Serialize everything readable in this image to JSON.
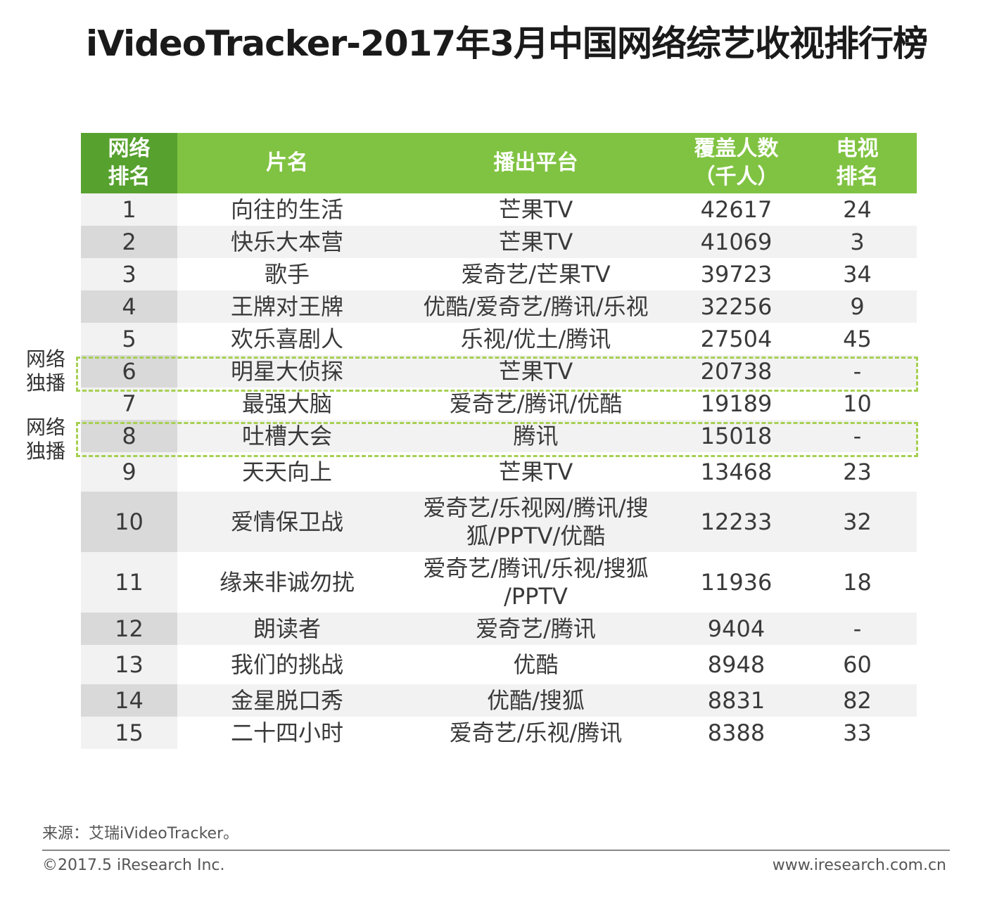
{
  "title": "iVideoTracker-2017年3月中国网络综艺收视排行榜",
  "headers": {
    "rank": [
      "网络",
      "排名"
    ],
    "name": "片名",
    "platform": "播出平台",
    "coverage": [
      "覆盖人数",
      "（千人）"
    ],
    "tv_rank": [
      "电视",
      "排名"
    ]
  },
  "rows": [
    {
      "rank": "1",
      "name": "向往的生活",
      "platform": [
        "芒果TV"
      ],
      "coverage": "42617",
      "tv_rank": "24"
    },
    {
      "rank": "2",
      "name": "快乐大本营",
      "platform": [
        "芒果TV"
      ],
      "coverage": "41069",
      "tv_rank": "3"
    },
    {
      "rank": "3",
      "name": "歌手",
      "platform": [
        "爱奇艺/芒果TV"
      ],
      "coverage": "39723",
      "tv_rank": "34"
    },
    {
      "rank": "4",
      "name": "王牌对王牌",
      "platform": [
        "优酷/爱奇艺/腾讯/乐视"
      ],
      "coverage": "32256",
      "tv_rank": "9"
    },
    {
      "rank": "5",
      "name": "欢乐喜剧人",
      "platform": [
        "乐视/优土/腾讯"
      ],
      "coverage": "27504",
      "tv_rank": "45"
    },
    {
      "rank": "6",
      "name": "明星大侦探",
      "platform": [
        "芒果TV"
      ],
      "coverage": "20738",
      "tv_rank": "-"
    },
    {
      "rank": "7",
      "name": "最强大脑",
      "platform": [
        "爱奇艺/腾讯/优酷"
      ],
      "coverage": "19189",
      "tv_rank": "10"
    },
    {
      "rank": "8",
      "name": "吐槽大会",
      "platform": [
        "腾讯"
      ],
      "coverage": "15018",
      "tv_rank": "-"
    },
    {
      "rank": "9",
      "name": "天天向上",
      "platform": [
        "芒果TV"
      ],
      "coverage": "13468",
      "tv_rank": "23"
    },
    {
      "rank": "10",
      "name": "爱情保卫战",
      "platform": [
        "爱奇艺/乐视网/腾讯/搜",
        "狐/PPTV/优酷"
      ],
      "coverage": "12233",
      "tv_rank": "32"
    },
    {
      "rank": "11",
      "name": "缘来非诚勿扰",
      "platform": [
        "爱奇艺/腾讯/乐视/搜狐",
        "/PPTV"
      ],
      "coverage": "11936",
      "tv_rank": "18"
    },
    {
      "rank": "12",
      "name": "朗读者",
      "platform": [
        "爱奇艺/腾讯"
      ],
      "coverage": "9404",
      "tv_rank": "-"
    },
    {
      "rank": "13",
      "name": "我们的挑战",
      "platform": [
        "优酷"
      ],
      "coverage": "8948",
      "tv_rank": "60"
    },
    {
      "rank": "14",
      "name": "金星脱口秀",
      "platform": [
        "优酷/搜狐"
      ],
      "coverage": "8831",
      "tv_rank": "82"
    },
    {
      "rank": "15",
      "name": "二十四小时",
      "platform": [
        "爱奇艺/乐视/腾讯"
      ],
      "coverage": "8388",
      "tv_rank": "33"
    }
  ],
  "exclusive_label": [
    "网络",
    "独播"
  ],
  "colors": {
    "header_green": "#80c342",
    "header_dark_green": "#57a12e",
    "highlight_dashed": "#a6d052"
  },
  "source": "来源：艾瑞iVideoTracker。",
  "copyright": "©2017.5 iResearch Inc.",
  "website": "www.iresearch.com.cn"
}
